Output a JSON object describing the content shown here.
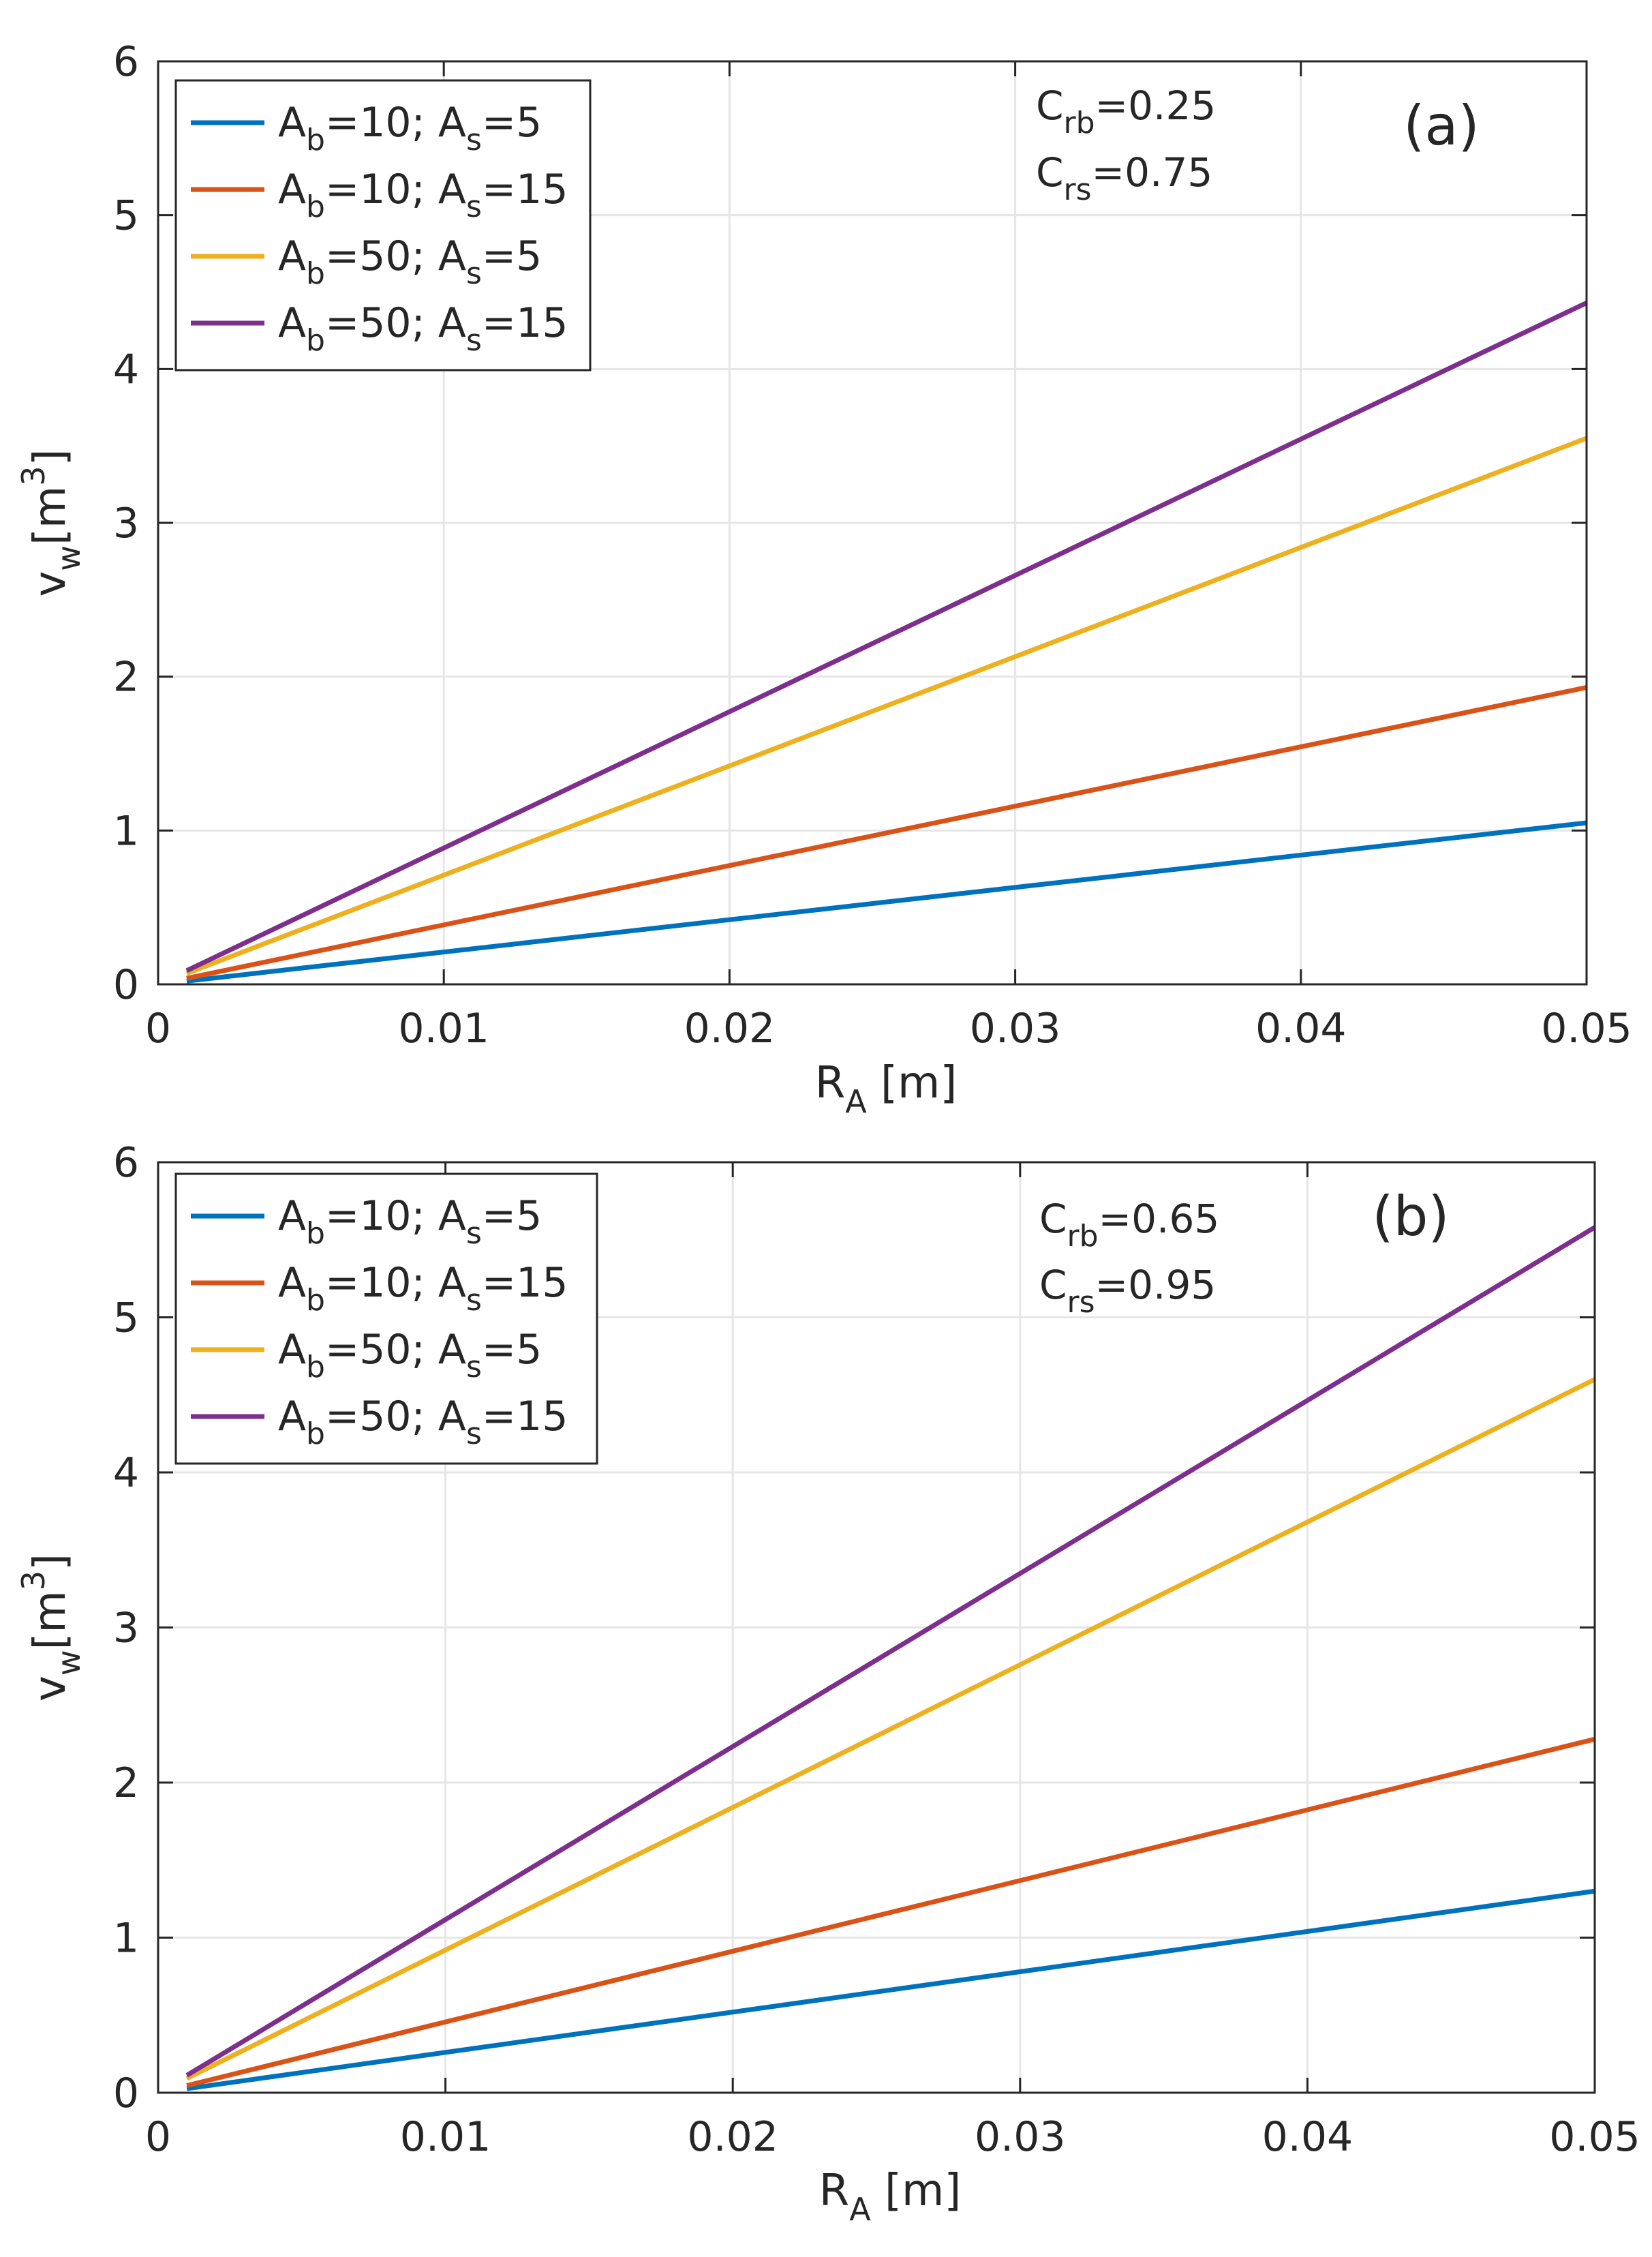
{
  "chart_data": [
    {
      "type": "line",
      "panel_label": "(a)",
      "annotation": {
        "line1": {
          "base": "C",
          "sub": "rb",
          "value": "=0.25"
        },
        "line2": {
          "base": "C",
          "sub": "rs",
          "value": "=0.75"
        }
      },
      "xlabel": {
        "base": "R",
        "sub": "A",
        "rest": " [m]"
      },
      "ylabel": {
        "base": "v",
        "sub": "w",
        "rest": "[m",
        "sup": "3",
        "close": "]"
      },
      "xlim": [
        0,
        0.05
      ],
      "ylim": [
        0,
        6
      ],
      "xticks": [
        "0",
        "0.01",
        "0.02",
        "0.03",
        "0.04",
        "0.05"
      ],
      "yticks": [
        "0",
        "1",
        "2",
        "3",
        "4",
        "5",
        "6"
      ],
      "grid": true,
      "legend_position": "top-left",
      "series": [
        {
          "name": "A_b=10; A_s=5",
          "label": {
            "b": "10",
            "s": "5"
          },
          "color": "#0072BD",
          "x": [
            0.001,
            0.05
          ],
          "y": [
            0.021,
            1.05
          ]
        },
        {
          "name": "A_b=10; A_s=15",
          "label": {
            "b": "10",
            "s": "15"
          },
          "color": "#D95319",
          "x": [
            0.001,
            0.05
          ],
          "y": [
            0.039,
            1.93
          ]
        },
        {
          "name": "A_b=50; A_s=5",
          "label": {
            "b": "50",
            "s": "5"
          },
          "color": "#EDB120",
          "x": [
            0.001,
            0.05
          ],
          "y": [
            0.071,
            3.55
          ]
        },
        {
          "name": "A_b=50; A_s=15",
          "label": {
            "b": "50",
            "s": "15"
          },
          "color": "#7E2F8E",
          "x": [
            0.001,
            0.05
          ],
          "y": [
            0.089,
            4.43
          ]
        }
      ]
    },
    {
      "type": "line",
      "panel_label": "(b)",
      "annotation": {
        "line1": {
          "base": "C",
          "sub": "rb",
          "value": "=0.65"
        },
        "line2": {
          "base": "C",
          "sub": "rs",
          "value": "=0.95"
        }
      },
      "xlabel": {
        "base": "R",
        "sub": "A",
        "rest": " [m]"
      },
      "ylabel": {
        "base": "v",
        "sub": "w",
        "rest": "[m",
        "sup": "3",
        "close": "]"
      },
      "xlim": [
        0,
        0.05
      ],
      "ylim": [
        0,
        6
      ],
      "xticks": [
        "0",
        "0.01",
        "0.02",
        "0.03",
        "0.04",
        "0.05"
      ],
      "yticks": [
        "0",
        "1",
        "2",
        "3",
        "4",
        "5",
        "6"
      ],
      "grid": true,
      "legend_position": "top-left",
      "series": [
        {
          "name": "A_b=10; A_s=5",
          "label": {
            "b": "10",
            "s": "5"
          },
          "color": "#0072BD",
          "x": [
            0.001,
            0.05
          ],
          "y": [
            0.026,
            1.3
          ]
        },
        {
          "name": "A_b=10; A_s=15",
          "label": {
            "b": "10",
            "s": "15"
          },
          "color": "#D95319",
          "x": [
            0.001,
            0.05
          ],
          "y": [
            0.046,
            2.28
          ]
        },
        {
          "name": "A_b=50; A_s=5",
          "label": {
            "b": "50",
            "s": "5"
          },
          "color": "#EDB120",
          "x": [
            0.001,
            0.05
          ],
          "y": [
            0.092,
            4.6
          ]
        },
        {
          "name": "A_b=50; A_s=15",
          "label": {
            "b": "50",
            "s": "15"
          },
          "color": "#7E2F8E",
          "x": [
            0.001,
            0.05
          ],
          "y": [
            0.112,
            5.58
          ]
        }
      ]
    }
  ]
}
